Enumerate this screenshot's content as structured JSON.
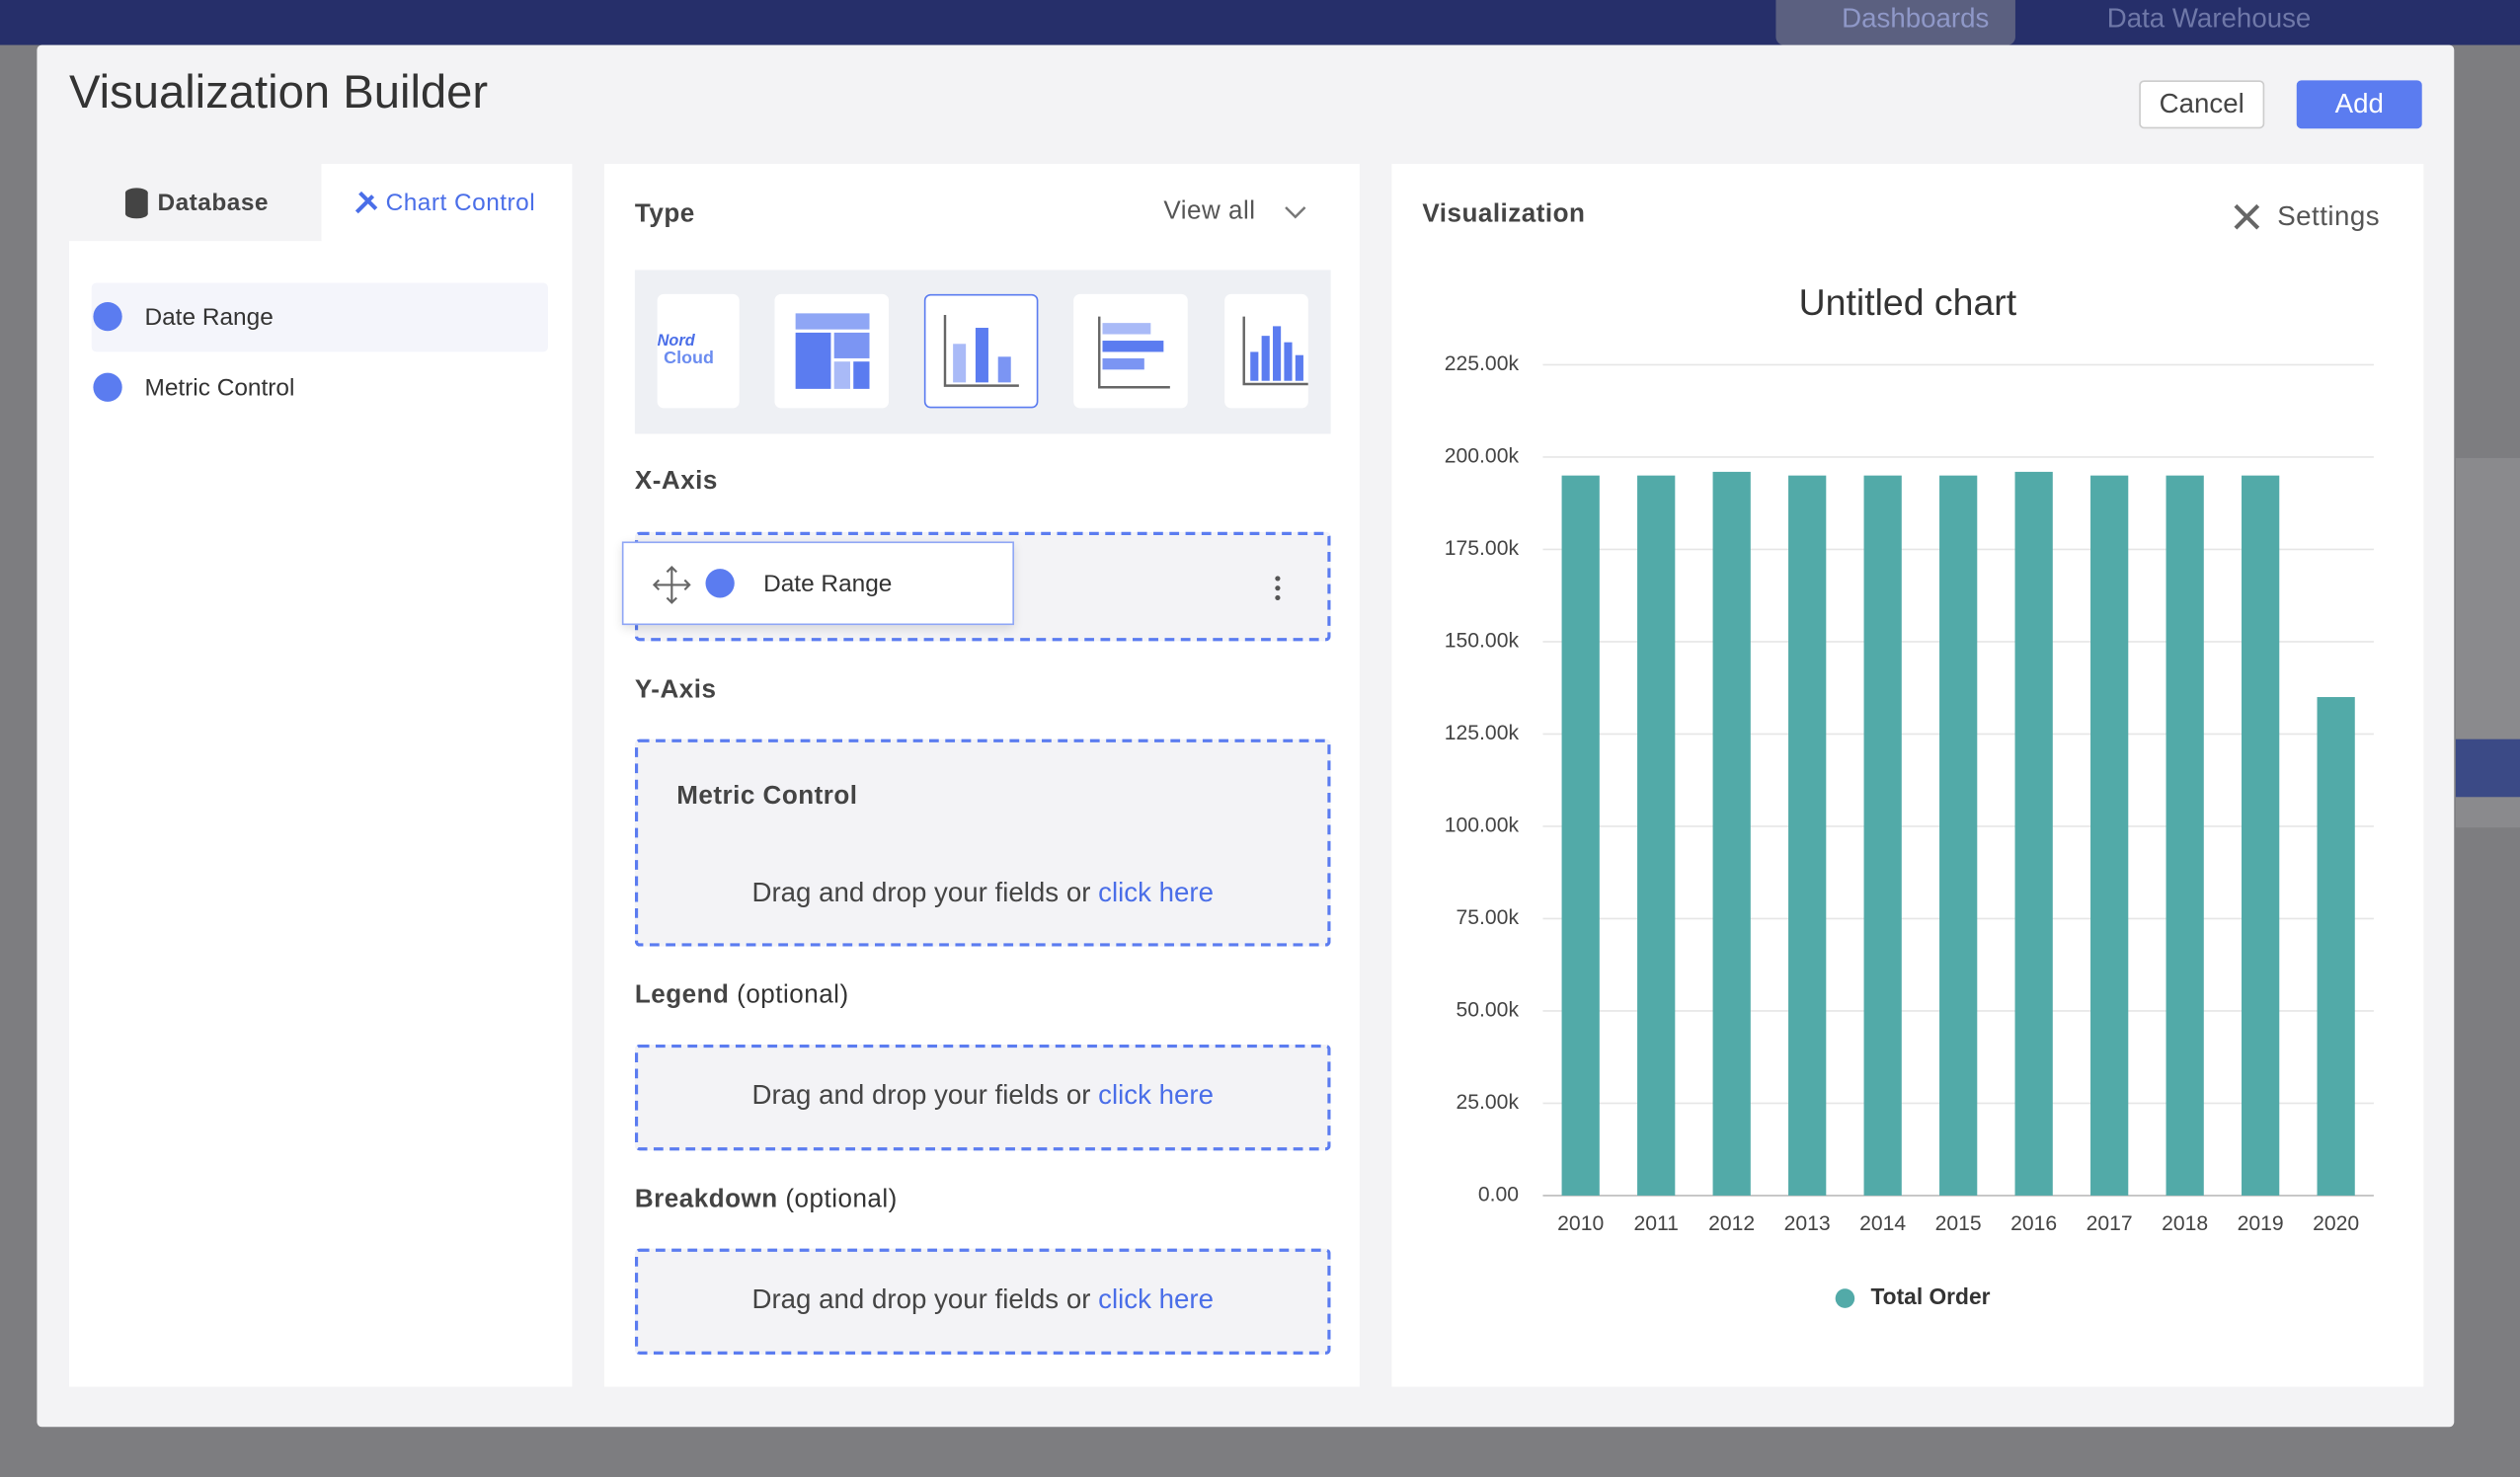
{
  "app_nav": {
    "items": [
      "Dashboards",
      "Data Warehouse"
    ]
  },
  "modal": {
    "title": "Visualization Builder",
    "cancel": "Cancel",
    "add": "Add"
  },
  "left_panel": {
    "tabs": [
      "Database",
      "Chart Control"
    ],
    "items": [
      "Date Range",
      "Metric Control"
    ]
  },
  "builder": {
    "type_label": "Type",
    "view_all": "View all",
    "type_thumbnail_text": [
      "Nord",
      "Cloud"
    ],
    "x_axis": {
      "label": "X-Axis",
      "field": "Date Range"
    },
    "y_axis": {
      "label": "Y-Axis",
      "field": "Metric Control"
    },
    "legend": {
      "label": "Legend",
      "optional": "(optional)"
    },
    "breakdown": {
      "label": "Breakdown",
      "optional": "(optional)"
    },
    "drop_hint": "Drag and drop your fields or",
    "drop_link": "click here"
  },
  "visualization": {
    "title": "Visualization",
    "settings": "Settings"
  },
  "chart_data": {
    "type": "bar",
    "title": "Untitled chart",
    "categories": [
      "2010",
      "2011",
      "2012",
      "2013",
      "2014",
      "2015",
      "2016",
      "2017",
      "2018",
      "2019",
      "2020"
    ],
    "series": [
      {
        "name": "Total Order",
        "color": "#52aaa8",
        "values": [
          195000,
          195000,
          196000,
          195000,
          195000,
          195000,
          196000,
          195000,
          195000,
          195000,
          135000
        ]
      }
    ],
    "ylim": [
      0,
      225000
    ],
    "yticks": [
      {
        "value": 0,
        "label": "0.00"
      },
      {
        "value": 25000,
        "label": "25.00k"
      },
      {
        "value": 50000,
        "label": "50.00k"
      },
      {
        "value": 75000,
        "label": "75.00k"
      },
      {
        "value": 100000,
        "label": "100.00k"
      },
      {
        "value": 125000,
        "label": "125.00k"
      },
      {
        "value": 150000,
        "label": "150.00k"
      },
      {
        "value": 175000,
        "label": "175.00k"
      },
      {
        "value": 200000,
        "label": "200.00k"
      },
      {
        "value": 225000,
        "label": "225.00k"
      }
    ],
    "grid": true
  }
}
